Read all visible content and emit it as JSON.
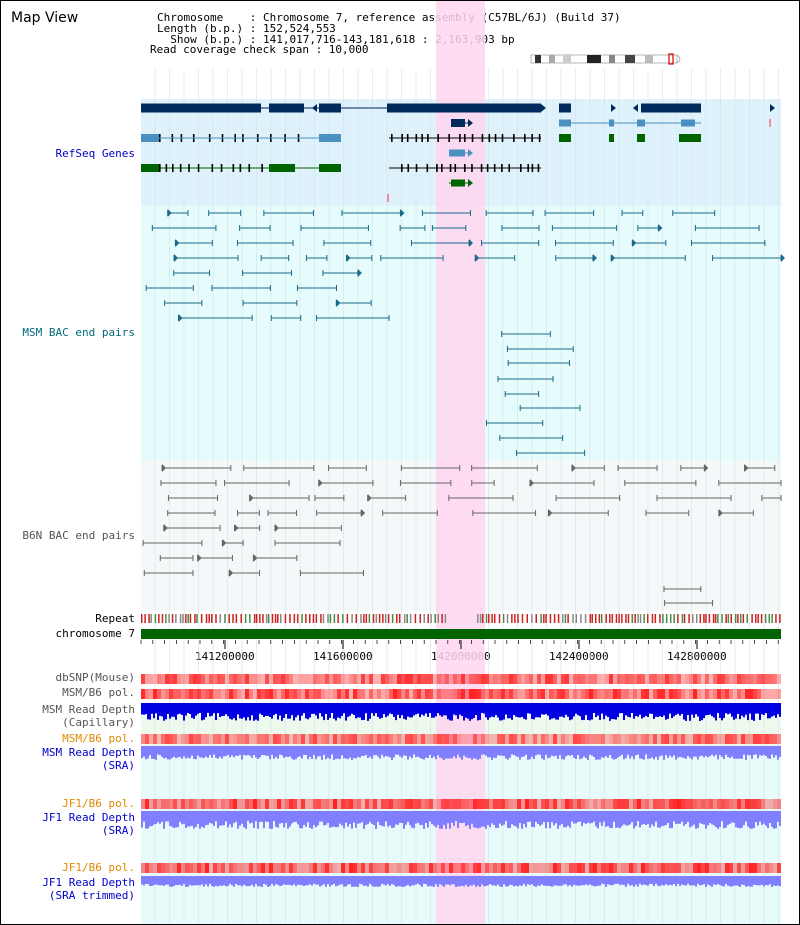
{
  "header": {
    "title": "Map View",
    "info_lines": [
      "Chromosome    : Chromosome 7, reference assembly (C57BL/6J) (Build 37)",
      "Length (b.p.) : 152,524,553",
      "  Show (b.p.) : 141,017,716-143,181,618 : 2,163,903 bp",
      "Read coverage check span : 10,000"
    ]
  },
  "region": {
    "start": 141017716,
    "end": 143181618,
    "highlight_start": 142000000,
    "highlight_end": 142170000
  },
  "tracks": {
    "refseq": {
      "label": "RefSeq Genes",
      "color": "#0000cc"
    },
    "msm_bac": {
      "label": "MSM BAC end pairs",
      "color": "#006b7a"
    },
    "b6n_bac": {
      "label": "B6N BAC end pairs",
      "color": "#555555"
    },
    "repeat": {
      "label": "Repeat"
    },
    "chromosome": {
      "label": "chromosome 7",
      "color": "#006400"
    },
    "dbsnp": {
      "label": "dbSNP(Mouse)",
      "color": "#555555"
    },
    "msm_b6_pol": {
      "label": "MSM/B6 pol.",
      "color": "#555555"
    },
    "msm_depth_cap": {
      "label_lines": [
        "MSM Read Depth",
        "(Capillary)"
      ],
      "color": "#555555"
    },
    "msm_b6_pol2": {
      "label": "MSM/B6 pol.",
      "color": "#e08a00"
    },
    "msm_depth_sra": {
      "label_lines": [
        "MSM Read Depth",
        "(SRA)"
      ],
      "color": "#0000cc"
    },
    "jf1_b6_pol": {
      "label": "JF1/B6 pol.",
      "color": "#e08a00"
    },
    "jf1_depth_sra": {
      "label_lines": [
        "JF1 Read Depth",
        "(SRA)"
      ],
      "color": "#0000cc"
    },
    "jf1_b6_pol2": {
      "label": "JF1/B6 pol.",
      "color": "#e08a00"
    },
    "jf1_depth_trim": {
      "label_lines": [
        "JF1 Read Depth",
        "(SRA trimmed)"
      ],
      "color": "#0000cc"
    }
  },
  "axis": {
    "ticks": [
      "141200000",
      "141600000",
      "142000000",
      "142400000",
      "142800000"
    ]
  },
  "colors": {
    "refseq_dark": "#002a5c",
    "refseq_mid": "#4a90c0",
    "refseq_green": "#006400",
    "msm_line": "#1a6a8a",
    "b6n_line": "#666666",
    "highlight": "#ffd6ee",
    "depth_cap": "#0000e0",
    "depth_sra": "#8080ff"
  }
}
